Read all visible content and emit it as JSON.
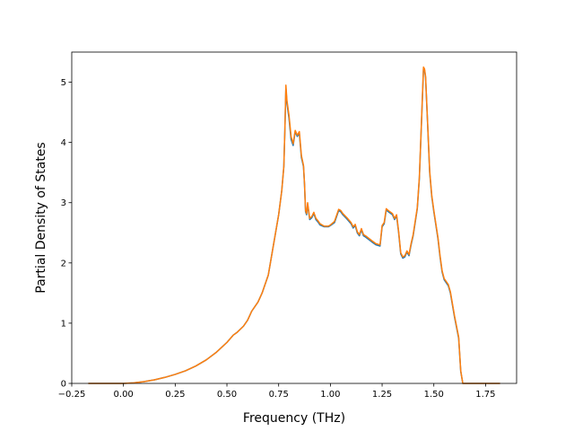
{
  "chart_data": {
    "type": "line",
    "title": "",
    "xlabel": "Frequency (THz)",
    "ylabel": "Partial Density of States",
    "xlim": [
      -0.25,
      1.9
    ],
    "ylim": [
      0,
      5.5
    ],
    "x_ticks": [
      -0.25,
      0.0,
      0.25,
      0.5,
      0.75,
      1.0,
      1.25,
      1.5,
      1.75
    ],
    "x_tick_labels": [
      "−0.25",
      "0.00",
      "0.25",
      "0.50",
      "0.75",
      "1.00",
      "1.25",
      "1.50",
      "1.75"
    ],
    "y_ticks": [
      0,
      1,
      2,
      3,
      4,
      5
    ],
    "y_tick_labels": [
      "0",
      "1",
      "2",
      "3",
      "4",
      "5"
    ],
    "grid": false,
    "legend": "none",
    "series": [
      {
        "color": "#1f77b4",
        "x": [
          -0.17,
          0.0,
          0.05,
          0.1,
          0.15,
          0.2,
          0.25,
          0.3,
          0.35,
          0.4,
          0.45,
          0.5,
          0.53,
          0.55,
          0.58,
          0.6,
          0.62,
          0.65,
          0.67,
          0.7,
          0.72,
          0.75,
          0.765,
          0.775,
          0.78,
          0.785,
          0.79,
          0.8,
          0.81,
          0.82,
          0.83,
          0.84,
          0.85,
          0.86,
          0.87,
          0.875,
          0.88,
          0.885,
          0.89,
          0.9,
          0.91,
          0.92,
          0.93,
          0.94,
          0.95,
          0.97,
          0.99,
          1.0,
          1.02,
          1.04,
          1.05,
          1.06,
          1.08,
          1.1,
          1.11,
          1.12,
          1.13,
          1.14,
          1.15,
          1.16,
          1.17,
          1.2,
          1.22,
          1.24,
          1.25,
          1.26,
          1.27,
          1.28,
          1.3,
          1.31,
          1.32,
          1.33,
          1.34,
          1.35,
          1.36,
          1.37,
          1.38,
          1.39,
          1.4,
          1.42,
          1.43,
          1.44,
          1.45,
          1.455,
          1.46,
          1.47,
          1.48,
          1.49,
          1.5,
          1.52,
          1.53,
          1.54,
          1.55,
          1.57,
          1.58,
          1.6,
          1.62,
          1.63,
          1.64,
          1.65,
          1.7,
          1.82
        ],
        "y": [
          0.0,
          0.0,
          0.01,
          0.03,
          0.06,
          0.1,
          0.15,
          0.21,
          0.29,
          0.39,
          0.52,
          0.68,
          0.8,
          0.85,
          0.95,
          1.05,
          1.2,
          1.35,
          1.5,
          1.8,
          2.2,
          2.8,
          3.2,
          3.6,
          4.2,
          4.9,
          4.65,
          4.4,
          4.05,
          3.95,
          4.18,
          4.1,
          4.15,
          3.75,
          3.6,
          3.3,
          2.85,
          2.8,
          2.97,
          2.72,
          2.75,
          2.82,
          2.72,
          2.68,
          2.63,
          2.6,
          2.6,
          2.62,
          2.67,
          2.87,
          2.85,
          2.8,
          2.73,
          2.65,
          2.58,
          2.62,
          2.5,
          2.45,
          2.55,
          2.45,
          2.43,
          2.35,
          2.3,
          2.28,
          2.6,
          2.65,
          2.88,
          2.85,
          2.8,
          2.72,
          2.78,
          2.5,
          2.15,
          2.08,
          2.1,
          2.18,
          2.12,
          2.3,
          2.45,
          2.9,
          3.4,
          4.3,
          5.22,
          5.2,
          5.08,
          4.3,
          3.5,
          3.1,
          2.85,
          2.4,
          2.1,
          1.85,
          1.72,
          1.62,
          1.5,
          1.1,
          0.75,
          0.2,
          0.0,
          0.0,
          0.0,
          0.0
        ]
      },
      {
        "color": "#ff7f0e",
        "x": [
          -0.17,
          0.0,
          0.05,
          0.1,
          0.15,
          0.2,
          0.25,
          0.3,
          0.35,
          0.4,
          0.45,
          0.5,
          0.53,
          0.55,
          0.58,
          0.6,
          0.62,
          0.65,
          0.67,
          0.7,
          0.72,
          0.75,
          0.765,
          0.775,
          0.78,
          0.785,
          0.79,
          0.8,
          0.81,
          0.82,
          0.83,
          0.84,
          0.85,
          0.86,
          0.87,
          0.875,
          0.88,
          0.885,
          0.89,
          0.9,
          0.91,
          0.92,
          0.93,
          0.94,
          0.95,
          0.97,
          0.99,
          1.0,
          1.02,
          1.04,
          1.05,
          1.06,
          1.08,
          1.1,
          1.11,
          1.12,
          1.13,
          1.14,
          1.15,
          1.16,
          1.17,
          1.2,
          1.22,
          1.24,
          1.25,
          1.26,
          1.27,
          1.28,
          1.3,
          1.31,
          1.32,
          1.33,
          1.34,
          1.35,
          1.36,
          1.37,
          1.38,
          1.39,
          1.4,
          1.42,
          1.43,
          1.44,
          1.45,
          1.455,
          1.46,
          1.47,
          1.48,
          1.49,
          1.5,
          1.52,
          1.53,
          1.54,
          1.55,
          1.57,
          1.58,
          1.6,
          1.62,
          1.63,
          1.64,
          1.65,
          1.7,
          1.82
        ],
        "y": [
          0.0,
          0.0,
          0.01,
          0.03,
          0.06,
          0.1,
          0.15,
          0.21,
          0.29,
          0.39,
          0.52,
          0.68,
          0.8,
          0.85,
          0.95,
          1.05,
          1.2,
          1.35,
          1.5,
          1.8,
          2.2,
          2.8,
          3.2,
          3.6,
          4.2,
          4.95,
          4.7,
          4.45,
          4.1,
          3.98,
          4.2,
          4.12,
          4.18,
          3.78,
          3.62,
          3.32,
          2.87,
          2.82,
          3.0,
          2.74,
          2.77,
          2.84,
          2.74,
          2.7,
          2.65,
          2.61,
          2.61,
          2.63,
          2.69,
          2.89,
          2.87,
          2.82,
          2.75,
          2.67,
          2.6,
          2.64,
          2.52,
          2.47,
          2.57,
          2.47,
          2.45,
          2.37,
          2.32,
          2.3,
          2.62,
          2.67,
          2.9,
          2.87,
          2.82,
          2.74,
          2.8,
          2.52,
          2.17,
          2.1,
          2.12,
          2.2,
          2.14,
          2.32,
          2.47,
          2.92,
          3.42,
          4.32,
          5.25,
          5.22,
          5.1,
          4.32,
          3.52,
          3.12,
          2.87,
          2.42,
          2.12,
          1.87,
          1.74,
          1.64,
          1.52,
          1.12,
          0.77,
          0.21,
          0.0,
          0.0,
          0.0,
          0.0
        ]
      }
    ]
  }
}
